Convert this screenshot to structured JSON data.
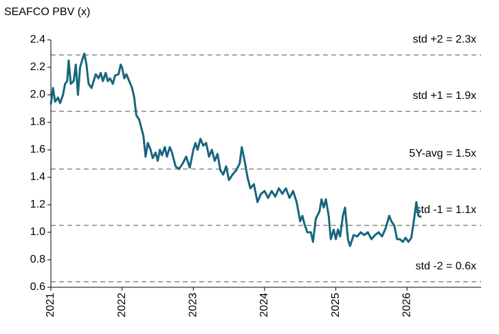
{
  "chart_data": {
    "type": "line",
    "title": "SEAFCO PBV (x)",
    "x": [
      2021.0,
      2021.03,
      2021.06,
      2021.1,
      2021.13,
      2021.17,
      2021.2,
      2021.23,
      2021.25,
      2021.28,
      2021.32,
      2021.35,
      2021.38,
      2021.41,
      2021.45,
      2021.47,
      2021.5,
      2021.53,
      2021.57,
      2021.6,
      2021.63,
      2021.67,
      2021.7,
      2021.73,
      2021.77,
      2021.8,
      2021.83,
      2021.87,
      2021.9,
      2021.95,
      2021.98,
      2022.0,
      2022.03,
      2022.06,
      2022.1,
      2022.14,
      2022.17,
      2022.2,
      2022.24,
      2022.27,
      2022.3,
      2022.33,
      2022.36,
      2022.4,
      2022.43,
      2022.47,
      2022.5,
      2022.53,
      2022.56,
      2022.6,
      2022.63,
      2022.67,
      2022.7,
      2022.75,
      2022.8,
      2022.85,
      2022.9,
      2022.95,
      2023.0,
      2023.03,
      2023.06,
      2023.1,
      2023.14,
      2023.18,
      2023.22,
      2023.26,
      2023.3,
      2023.34,
      2023.38,
      2023.42,
      2023.46,
      2023.5,
      2023.55,
      2023.6,
      2023.65,
      2023.68,
      2023.72,
      2023.76,
      2023.8,
      2023.85,
      2023.9,
      2023.95,
      2024.0,
      2024.05,
      2024.1,
      2024.15,
      2024.2,
      2024.25,
      2024.3,
      2024.35,
      2024.4,
      2024.45,
      2024.5,
      2024.53,
      2024.56,
      2024.6,
      2024.65,
      2024.68,
      2024.72,
      2024.77,
      2024.8,
      2024.83,
      2024.86,
      2024.9,
      2024.93,
      2024.97,
      2025.0,
      2025.03,
      2025.06,
      2025.1,
      2025.13,
      2025.17,
      2025.2,
      2025.25,
      2025.3,
      2025.35,
      2025.4,
      2025.45,
      2025.5,
      2025.55,
      2025.6,
      2025.65,
      2025.7,
      2025.75,
      2025.78,
      2025.82,
      2025.86,
      2025.9,
      2025.94,
      2025.98,
      2026.02,
      2026.06,
      2026.1,
      2026.13,
      2026.16,
      2026.2
    ],
    "series": [
      {
        "name": "PBV",
        "color": "#17667d",
        "values": [
          1.93,
          2.05,
          1.95,
          1.98,
          1.94,
          2.0,
          2.08,
          2.1,
          2.25,
          2.08,
          2.1,
          2.22,
          2.0,
          2.2,
          2.27,
          2.3,
          2.22,
          2.08,
          2.05,
          2.1,
          2.15,
          2.12,
          2.16,
          2.1,
          2.16,
          2.1,
          2.12,
          2.08,
          2.14,
          2.15,
          2.22,
          2.2,
          2.12,
          2.15,
          2.1,
          2.05,
          1.98,
          1.85,
          1.82,
          1.76,
          1.7,
          1.55,
          1.65,
          1.6,
          1.54,
          1.58,
          1.52,
          1.6,
          1.56,
          1.62,
          1.55,
          1.62,
          1.58,
          1.48,
          1.46,
          1.5,
          1.55,
          1.47,
          1.6,
          1.65,
          1.6,
          1.68,
          1.63,
          1.65,
          1.55,
          1.6,
          1.52,
          1.57,
          1.45,
          1.42,
          1.48,
          1.38,
          1.42,
          1.45,
          1.5,
          1.62,
          1.52,
          1.4,
          1.32,
          1.35,
          1.22,
          1.28,
          1.3,
          1.25,
          1.3,
          1.26,
          1.32,
          1.28,
          1.32,
          1.25,
          1.3,
          1.22,
          1.08,
          1.12,
          1.06,
          1.0,
          1.0,
          0.93,
          1.1,
          1.15,
          1.24,
          1.18,
          1.24,
          1.12,
          0.95,
          1.02,
          0.95,
          1.02,
          0.97,
          1.12,
          1.18,
          0.95,
          0.9,
          0.98,
          0.97,
          1.0,
          0.98,
          1.0,
          0.95,
          0.98,
          1.0,
          0.97,
          1.03,
          1.12,
          1.08,
          1.05,
          0.95,
          0.95,
          0.93,
          0.96,
          0.93,
          0.96,
          1.1,
          1.22,
          1.12,
          1.11
        ]
      }
    ],
    "reference_lines": [
      {
        "value": 2.29,
        "label": "std +2 = 2.3x"
      },
      {
        "value": 1.88,
        "label": "std +1 = 1.9x"
      },
      {
        "value": 1.46,
        "label": "5Y-avg = 1.5x"
      },
      {
        "value": 1.05,
        "label": "std -1 = 1.1x"
      },
      {
        "value": 0.64,
        "label": "std -2 = 0.6x"
      }
    ],
    "reference_color": "#a6a6a6",
    "xlim": [
      2021,
      2027.04
    ],
    "xticks": [
      2021,
      2022,
      2023,
      2024,
      2025,
      2026
    ],
    "ylim": [
      0.6,
      2.4
    ],
    "yticks": [
      0.6,
      0.8,
      {
        "value": 1.0,
        "label": "1.0"
      },
      1.2,
      1.4,
      1.6,
      1.8,
      {
        "value": 2.0,
        "label": "2.0"
      },
      2.2,
      2.4
    ]
  }
}
